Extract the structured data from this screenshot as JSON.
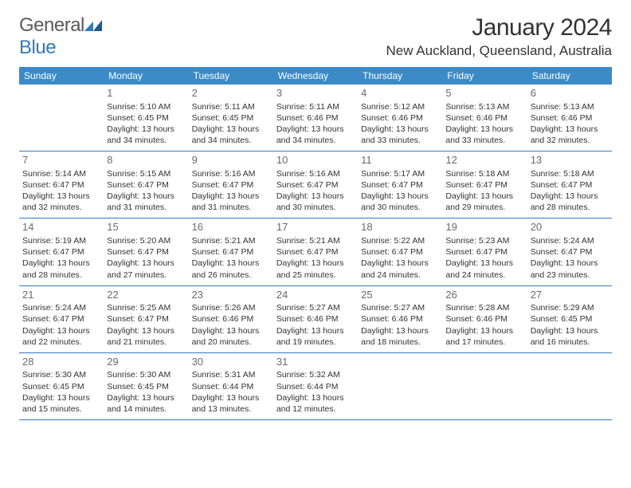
{
  "logo": {
    "general": "General",
    "blue": "Blue"
  },
  "title": "January 2024",
  "location": "New Auckland, Queensland, Australia",
  "colors": {
    "header_bg": "#3b8bc8",
    "header_text": "#ffffff",
    "rule": "#2f7bbf",
    "daynum": "#6a6a6a",
    "body_text": "#333333",
    "logo_gray": "#5a5a5a",
    "logo_blue": "#2f7bbf",
    "background": "#ffffff"
  },
  "typography": {
    "title_fontsize": 30,
    "location_fontsize": 17,
    "dow_fontsize": 12,
    "daynum_fontsize": 13,
    "body_fontsize": 10.5
  },
  "daysOfWeek": [
    "Sunday",
    "Monday",
    "Tuesday",
    "Wednesday",
    "Thursday",
    "Friday",
    "Saturday"
  ],
  "weeks": [
    [
      null,
      {
        "n": "1",
        "sr": "Sunrise: 5:10 AM",
        "ss": "Sunset: 6:45 PM",
        "d1": "Daylight: 13 hours",
        "d2": "and 34 minutes."
      },
      {
        "n": "2",
        "sr": "Sunrise: 5:11 AM",
        "ss": "Sunset: 6:45 PM",
        "d1": "Daylight: 13 hours",
        "d2": "and 34 minutes."
      },
      {
        "n": "3",
        "sr": "Sunrise: 5:11 AM",
        "ss": "Sunset: 6:46 PM",
        "d1": "Daylight: 13 hours",
        "d2": "and 34 minutes."
      },
      {
        "n": "4",
        "sr": "Sunrise: 5:12 AM",
        "ss": "Sunset: 6:46 PM",
        "d1": "Daylight: 13 hours",
        "d2": "and 33 minutes."
      },
      {
        "n": "5",
        "sr": "Sunrise: 5:13 AM",
        "ss": "Sunset: 6:46 PM",
        "d1": "Daylight: 13 hours",
        "d2": "and 33 minutes."
      },
      {
        "n": "6",
        "sr": "Sunrise: 5:13 AM",
        "ss": "Sunset: 6:46 PM",
        "d1": "Daylight: 13 hours",
        "d2": "and 32 minutes."
      }
    ],
    [
      {
        "n": "7",
        "sr": "Sunrise: 5:14 AM",
        "ss": "Sunset: 6:47 PM",
        "d1": "Daylight: 13 hours",
        "d2": "and 32 minutes."
      },
      {
        "n": "8",
        "sr": "Sunrise: 5:15 AM",
        "ss": "Sunset: 6:47 PM",
        "d1": "Daylight: 13 hours",
        "d2": "and 31 minutes."
      },
      {
        "n": "9",
        "sr": "Sunrise: 5:16 AM",
        "ss": "Sunset: 6:47 PM",
        "d1": "Daylight: 13 hours",
        "d2": "and 31 minutes."
      },
      {
        "n": "10",
        "sr": "Sunrise: 5:16 AM",
        "ss": "Sunset: 6:47 PM",
        "d1": "Daylight: 13 hours",
        "d2": "and 30 minutes."
      },
      {
        "n": "11",
        "sr": "Sunrise: 5:17 AM",
        "ss": "Sunset: 6:47 PM",
        "d1": "Daylight: 13 hours",
        "d2": "and 30 minutes."
      },
      {
        "n": "12",
        "sr": "Sunrise: 5:18 AM",
        "ss": "Sunset: 6:47 PM",
        "d1": "Daylight: 13 hours",
        "d2": "and 29 minutes."
      },
      {
        "n": "13",
        "sr": "Sunrise: 5:18 AM",
        "ss": "Sunset: 6:47 PM",
        "d1": "Daylight: 13 hours",
        "d2": "and 28 minutes."
      }
    ],
    [
      {
        "n": "14",
        "sr": "Sunrise: 5:19 AM",
        "ss": "Sunset: 6:47 PM",
        "d1": "Daylight: 13 hours",
        "d2": "and 28 minutes."
      },
      {
        "n": "15",
        "sr": "Sunrise: 5:20 AM",
        "ss": "Sunset: 6:47 PM",
        "d1": "Daylight: 13 hours",
        "d2": "and 27 minutes."
      },
      {
        "n": "16",
        "sr": "Sunrise: 5:21 AM",
        "ss": "Sunset: 6:47 PM",
        "d1": "Daylight: 13 hours",
        "d2": "and 26 minutes."
      },
      {
        "n": "17",
        "sr": "Sunrise: 5:21 AM",
        "ss": "Sunset: 6:47 PM",
        "d1": "Daylight: 13 hours",
        "d2": "and 25 minutes."
      },
      {
        "n": "18",
        "sr": "Sunrise: 5:22 AM",
        "ss": "Sunset: 6:47 PM",
        "d1": "Daylight: 13 hours",
        "d2": "and 24 minutes."
      },
      {
        "n": "19",
        "sr": "Sunrise: 5:23 AM",
        "ss": "Sunset: 6:47 PM",
        "d1": "Daylight: 13 hours",
        "d2": "and 24 minutes."
      },
      {
        "n": "20",
        "sr": "Sunrise: 5:24 AM",
        "ss": "Sunset: 6:47 PM",
        "d1": "Daylight: 13 hours",
        "d2": "and 23 minutes."
      }
    ],
    [
      {
        "n": "21",
        "sr": "Sunrise: 5:24 AM",
        "ss": "Sunset: 6:47 PM",
        "d1": "Daylight: 13 hours",
        "d2": "and 22 minutes."
      },
      {
        "n": "22",
        "sr": "Sunrise: 5:25 AM",
        "ss": "Sunset: 6:47 PM",
        "d1": "Daylight: 13 hours",
        "d2": "and 21 minutes."
      },
      {
        "n": "23",
        "sr": "Sunrise: 5:26 AM",
        "ss": "Sunset: 6:46 PM",
        "d1": "Daylight: 13 hours",
        "d2": "and 20 minutes."
      },
      {
        "n": "24",
        "sr": "Sunrise: 5:27 AM",
        "ss": "Sunset: 6:46 PM",
        "d1": "Daylight: 13 hours",
        "d2": "and 19 minutes."
      },
      {
        "n": "25",
        "sr": "Sunrise: 5:27 AM",
        "ss": "Sunset: 6:46 PM",
        "d1": "Daylight: 13 hours",
        "d2": "and 18 minutes."
      },
      {
        "n": "26",
        "sr": "Sunrise: 5:28 AM",
        "ss": "Sunset: 6:46 PM",
        "d1": "Daylight: 13 hours",
        "d2": "and 17 minutes."
      },
      {
        "n": "27",
        "sr": "Sunrise: 5:29 AM",
        "ss": "Sunset: 6:45 PM",
        "d1": "Daylight: 13 hours",
        "d2": "and 16 minutes."
      }
    ],
    [
      {
        "n": "28",
        "sr": "Sunrise: 5:30 AM",
        "ss": "Sunset: 6:45 PM",
        "d1": "Daylight: 13 hours",
        "d2": "and 15 minutes."
      },
      {
        "n": "29",
        "sr": "Sunrise: 5:30 AM",
        "ss": "Sunset: 6:45 PM",
        "d1": "Daylight: 13 hours",
        "d2": "and 14 minutes."
      },
      {
        "n": "30",
        "sr": "Sunrise: 5:31 AM",
        "ss": "Sunset: 6:44 PM",
        "d1": "Daylight: 13 hours",
        "d2": "and 13 minutes."
      },
      {
        "n": "31",
        "sr": "Sunrise: 5:32 AM",
        "ss": "Sunset: 6:44 PM",
        "d1": "Daylight: 13 hours",
        "d2": "and 12 minutes."
      },
      null,
      null,
      null
    ]
  ]
}
